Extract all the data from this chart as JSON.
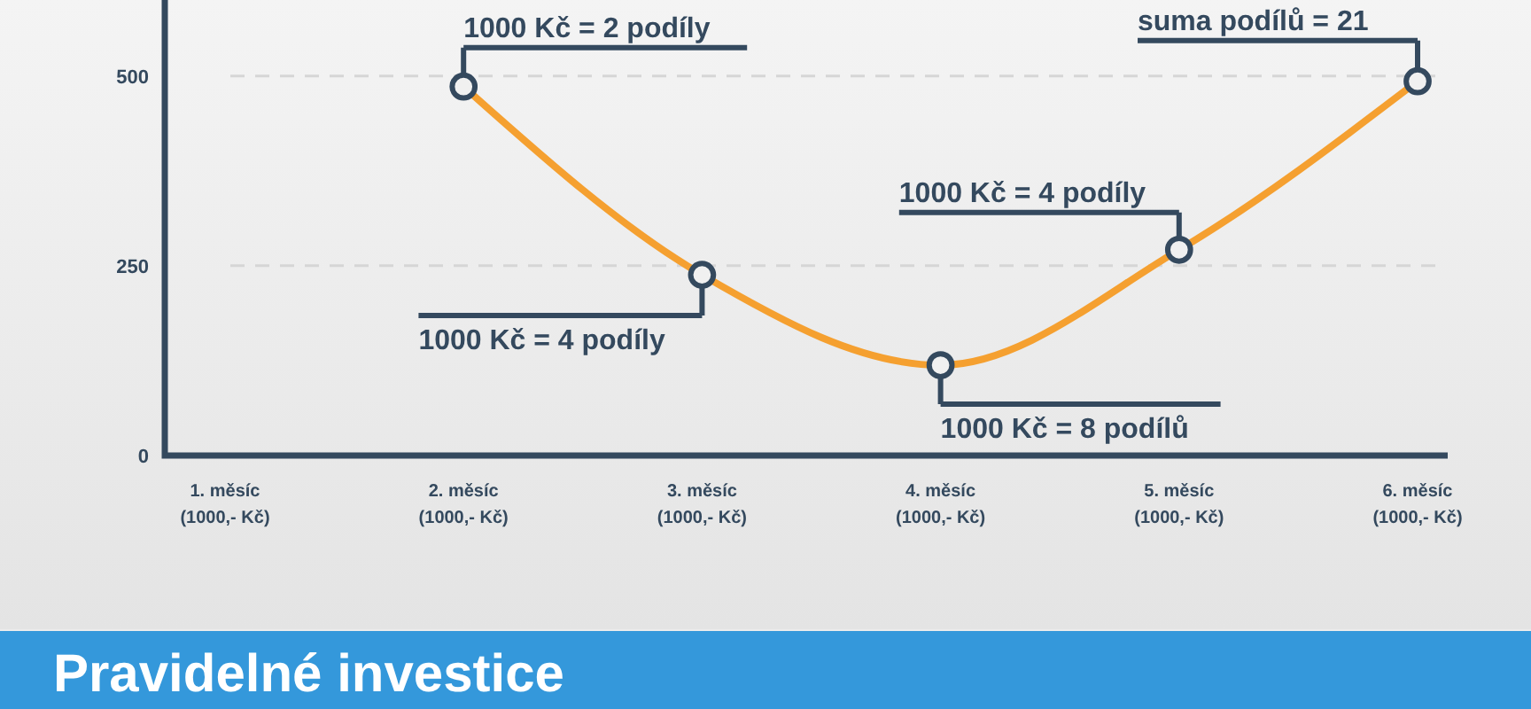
{
  "chart_data": {
    "type": "line",
    "title": "Pravidelné investice",
    "categories": [
      "1. měsíc\n(1000,- Kč)",
      "2. měsíc\n(1000,- Kč)",
      "3. měsíc\n(1000,- Kč)",
      "4. měsíc\n(1000,- Kč)",
      "5. měsíc\n(1000,- Kč)",
      "6. měsíc\n(1000,- Kč)"
    ],
    "ylim": [
      0,
      600
    ],
    "yticks": [
      0,
      250,
      500
    ],
    "grid": "y",
    "marker": "circle",
    "series": [
      {
        "color": "#f5a030",
        "values": [
          null,
          486,
          238,
          119,
          271,
          493
        ]
      }
    ],
    "annotations": [
      {
        "text": "1000 Kč = 2 podíly",
        "x": "2. měsíc\n(1000,- Kč)",
        "y": 486
      },
      {
        "text": "1000 Kč = 4 podíly",
        "x": "3. měsíc\n(1000,- Kč)",
        "y": 238
      },
      {
        "text": "1000 Kč = 8 podílů",
        "x": "4. měsíc\n(1000,- Kč)",
        "y": 119
      },
      {
        "text": "1000 Kč = 4 podíly",
        "x": "5. měsíc\n(1000,- Kč)",
        "y": 271
      },
      {
        "text": "suma podílů = 21",
        "x": "6. měsíc\n(1000,- Kč)",
        "y": 493
      }
    ]
  }
}
